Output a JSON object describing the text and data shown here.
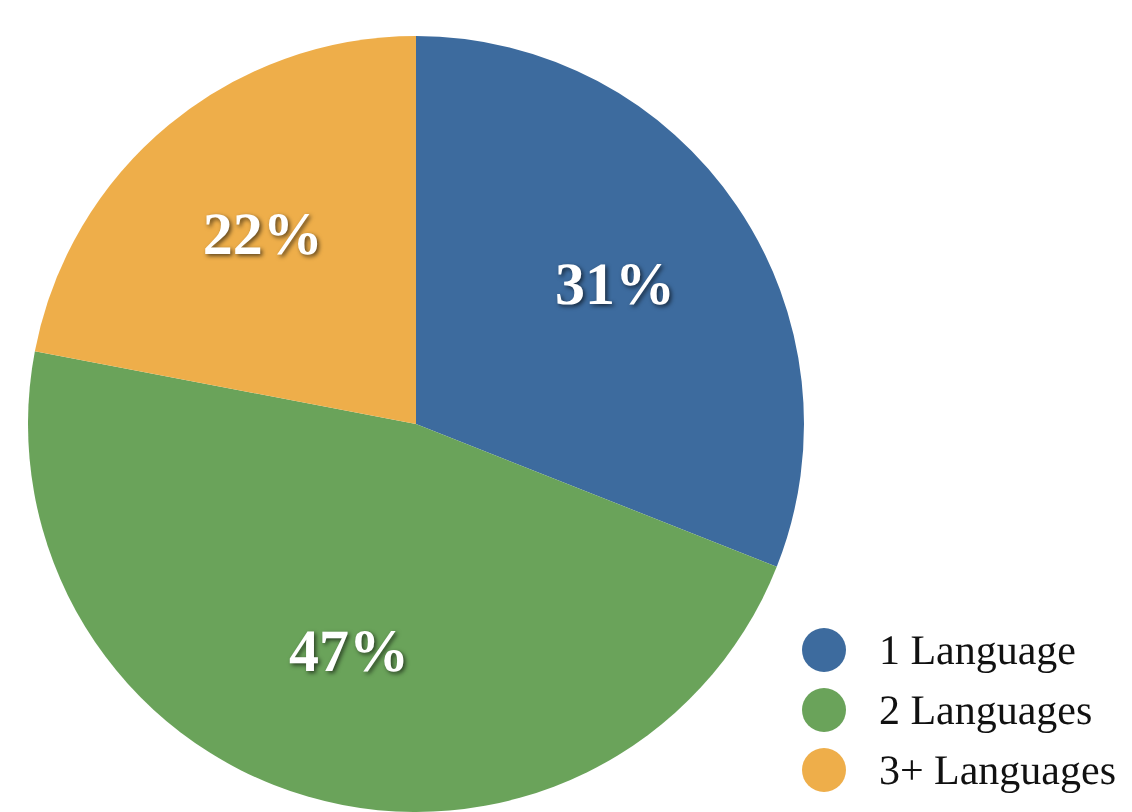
{
  "chart_data": {
    "type": "pie",
    "categories": [
      "1 Language",
      "2 Languages",
      "3+ Languages"
    ],
    "values": [
      31,
      47,
      22
    ],
    "colors": [
      "#3d6b9e",
      "#6aa35a",
      "#eeae4a"
    ],
    "value_labels": [
      "31%",
      "47%",
      "22%"
    ],
    "legend": "bottom right"
  }
}
